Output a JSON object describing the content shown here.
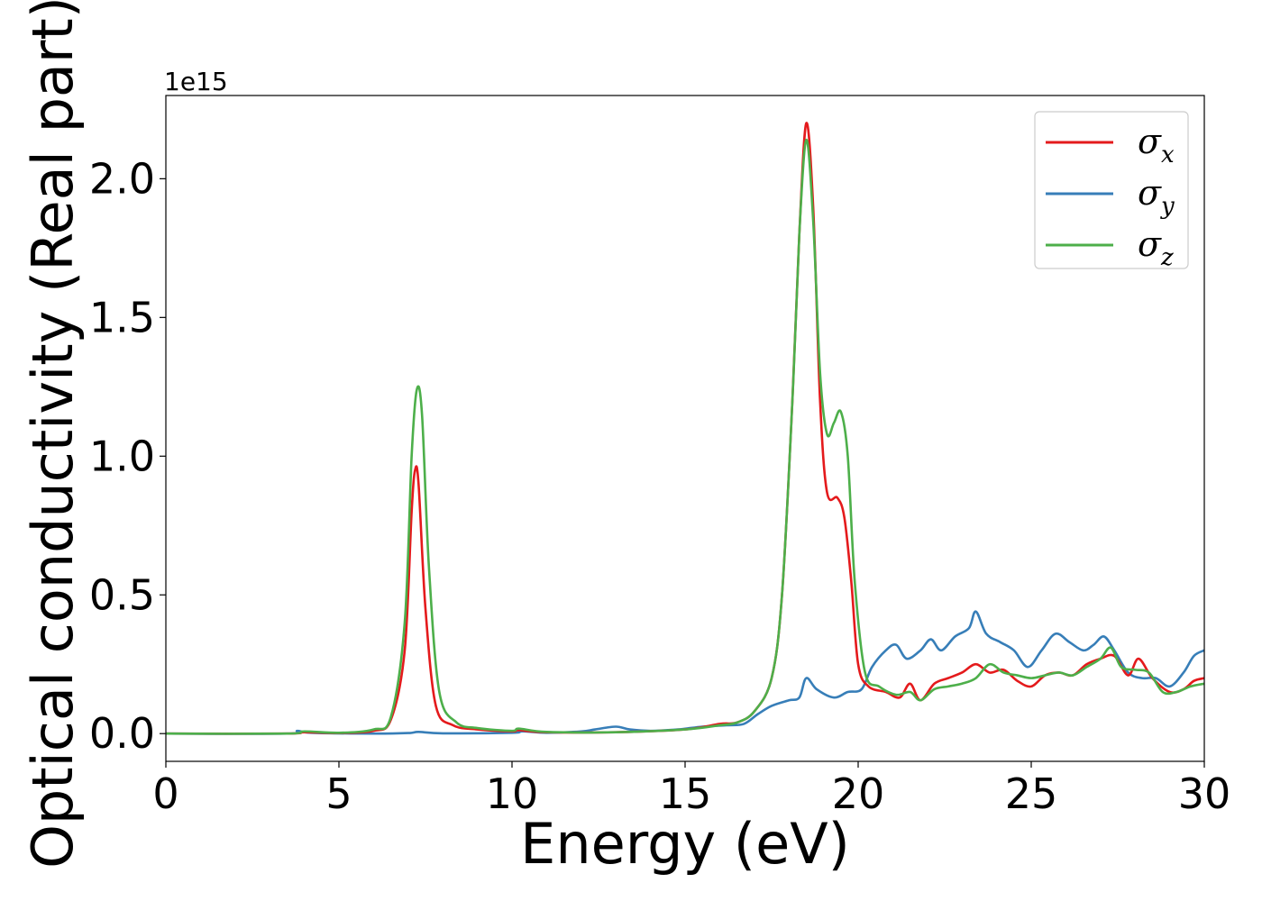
{
  "chart_data": {
    "type": "line",
    "xlabel": "Energy (eV)",
    "ylabel": "Optical conductivity (Real part)",
    "y_offset_label": "1e15",
    "xlim": [
      0,
      30
    ],
    "ylim": [
      -0.1,
      2.3
    ],
    "xticks": [
      0,
      5,
      10,
      15,
      20,
      25,
      30
    ],
    "xtick_labels": [
      "0",
      "5",
      "10",
      "15",
      "20",
      "25",
      "30"
    ],
    "yticks": [
      0.0,
      0.5,
      1.0,
      1.5,
      2.0
    ],
    "ytick_labels": [
      "0.0",
      "0.5",
      "1.0",
      "1.5",
      "2.0"
    ],
    "grid": false,
    "legend_position": "top-right",
    "series": [
      {
        "name": "σx",
        "name_main": "σ",
        "name_sub": "x",
        "color": "#e41a1c",
        "points": [
          [
            0,
            0
          ],
          [
            3.5,
            0
          ],
          [
            4.0,
            0.005
          ],
          [
            5.0,
            0.002
          ],
          [
            6.0,
            0.01
          ],
          [
            6.5,
            0.05
          ],
          [
            6.9,
            0.3
          ],
          [
            7.1,
            0.8
          ],
          [
            7.2,
            0.95
          ],
          [
            7.3,
            0.9
          ],
          [
            7.5,
            0.45
          ],
          [
            7.8,
            0.1
          ],
          [
            8.3,
            0.03
          ],
          [
            9,
            0.015
          ],
          [
            10,
            0.008
          ],
          [
            10.2,
            0.012
          ],
          [
            11,
            0.005
          ],
          [
            13,
            0.005
          ],
          [
            15,
            0.015
          ],
          [
            16,
            0.035
          ],
          [
            16.5,
            0.04
          ],
          [
            17,
            0.08
          ],
          [
            17.5,
            0.2
          ],
          [
            17.8,
            0.5
          ],
          [
            18.1,
            1.2
          ],
          [
            18.3,
            1.8
          ],
          [
            18.5,
            2.2
          ],
          [
            18.7,
            1.9
          ],
          [
            18.9,
            1.2
          ],
          [
            19.1,
            0.87
          ],
          [
            19.4,
            0.85
          ],
          [
            19.6,
            0.78
          ],
          [
            19.8,
            0.55
          ],
          [
            20.0,
            0.25
          ],
          [
            20.3,
            0.17
          ],
          [
            20.8,
            0.15
          ],
          [
            21.2,
            0.13
          ],
          [
            21.5,
            0.18
          ],
          [
            21.8,
            0.12
          ],
          [
            22.2,
            0.18
          ],
          [
            22.6,
            0.2
          ],
          [
            23.0,
            0.22
          ],
          [
            23.4,
            0.25
          ],
          [
            23.8,
            0.22
          ],
          [
            24.2,
            0.23
          ],
          [
            24.6,
            0.19
          ],
          [
            25.0,
            0.17
          ],
          [
            25.4,
            0.21
          ],
          [
            25.8,
            0.22
          ],
          [
            26.2,
            0.21
          ],
          [
            26.6,
            0.25
          ],
          [
            27.0,
            0.27
          ],
          [
            27.4,
            0.28
          ],
          [
            27.8,
            0.21
          ],
          [
            28.1,
            0.27
          ],
          [
            28.5,
            0.2
          ],
          [
            29.0,
            0.15
          ],
          [
            29.4,
            0.16
          ],
          [
            29.7,
            0.19
          ],
          [
            30,
            0.2
          ]
        ]
      },
      {
        "name": "σy",
        "name_main": "σ",
        "name_sub": "y",
        "color": "#377eb8",
        "points": [
          [
            0,
            0
          ],
          [
            3.5,
            0
          ],
          [
            3.8,
            0.01
          ],
          [
            4.2,
            0.003
          ],
          [
            6.0,
            0
          ],
          [
            7.0,
            0.002
          ],
          [
            7.3,
            0.006
          ],
          [
            8,
            0.001
          ],
          [
            10,
            0.003
          ],
          [
            10.3,
            0.008
          ],
          [
            11,
            0.003
          ],
          [
            12,
            0.008
          ],
          [
            12.4,
            0.015
          ],
          [
            13.0,
            0.025
          ],
          [
            13.4,
            0.015
          ],
          [
            14,
            0.01
          ],
          [
            14.8,
            0.015
          ],
          [
            15.5,
            0.025
          ],
          [
            16.2,
            0.03
          ],
          [
            16.7,
            0.035
          ],
          [
            17.1,
            0.07
          ],
          [
            17.5,
            0.1
          ],
          [
            18.0,
            0.12
          ],
          [
            18.3,
            0.13
          ],
          [
            18.5,
            0.2
          ],
          [
            18.8,
            0.16
          ],
          [
            19.3,
            0.13
          ],
          [
            19.7,
            0.15
          ],
          [
            20.1,
            0.16
          ],
          [
            20.4,
            0.24
          ],
          [
            20.8,
            0.3
          ],
          [
            21.1,
            0.32
          ],
          [
            21.4,
            0.27
          ],
          [
            21.8,
            0.3
          ],
          [
            22.1,
            0.34
          ],
          [
            22.4,
            0.3
          ],
          [
            22.8,
            0.35
          ],
          [
            23.2,
            0.38
          ],
          [
            23.4,
            0.44
          ],
          [
            23.7,
            0.36
          ],
          [
            24.1,
            0.33
          ],
          [
            24.5,
            0.3
          ],
          [
            24.9,
            0.24
          ],
          [
            25.3,
            0.3
          ],
          [
            25.7,
            0.36
          ],
          [
            26.1,
            0.33
          ],
          [
            26.5,
            0.3
          ],
          [
            26.8,
            0.32
          ],
          [
            27.1,
            0.35
          ],
          [
            27.4,
            0.3
          ],
          [
            27.8,
            0.22
          ],
          [
            28.2,
            0.2
          ],
          [
            28.6,
            0.2
          ],
          [
            29.0,
            0.17
          ],
          [
            29.4,
            0.22
          ],
          [
            29.7,
            0.28
          ],
          [
            30,
            0.3
          ]
        ]
      },
      {
        "name": "σz",
        "name_main": "σ",
        "name_sub": "z",
        "color": "#4daf4a",
        "points": [
          [
            0,
            0
          ],
          [
            3.5,
            0
          ],
          [
            4.0,
            0.008
          ],
          [
            5.0,
            0.003
          ],
          [
            6.0,
            0.015
          ],
          [
            6.5,
            0.06
          ],
          [
            6.9,
            0.4
          ],
          [
            7.1,
            1.0
          ],
          [
            7.25,
            1.24
          ],
          [
            7.4,
            1.15
          ],
          [
            7.6,
            0.6
          ],
          [
            7.9,
            0.15
          ],
          [
            8.4,
            0.04
          ],
          [
            9,
            0.02
          ],
          [
            10,
            0.01
          ],
          [
            10.2,
            0.018
          ],
          [
            11,
            0.006
          ],
          [
            13,
            0.005
          ],
          [
            15,
            0.015
          ],
          [
            16,
            0.03
          ],
          [
            16.5,
            0.04
          ],
          [
            17,
            0.08
          ],
          [
            17.5,
            0.2
          ],
          [
            17.8,
            0.5
          ],
          [
            18.1,
            1.2
          ],
          [
            18.3,
            1.8
          ],
          [
            18.5,
            2.14
          ],
          [
            18.7,
            1.85
          ],
          [
            18.9,
            1.3
          ],
          [
            19.1,
            1.08
          ],
          [
            19.3,
            1.12
          ],
          [
            19.5,
            1.16
          ],
          [
            19.7,
            1.0
          ],
          [
            19.9,
            0.55
          ],
          [
            20.2,
            0.22
          ],
          [
            20.6,
            0.17
          ],
          [
            21.1,
            0.14
          ],
          [
            21.5,
            0.15
          ],
          [
            21.8,
            0.12
          ],
          [
            22.2,
            0.16
          ],
          [
            22.6,
            0.17
          ],
          [
            23.0,
            0.18
          ],
          [
            23.4,
            0.2
          ],
          [
            23.8,
            0.25
          ],
          [
            24.2,
            0.22
          ],
          [
            24.6,
            0.21
          ],
          [
            25.0,
            0.2
          ],
          [
            25.4,
            0.21
          ],
          [
            25.8,
            0.22
          ],
          [
            26.2,
            0.21
          ],
          [
            26.6,
            0.24
          ],
          [
            27.0,
            0.27
          ],
          [
            27.3,
            0.31
          ],
          [
            27.6,
            0.24
          ],
          [
            28.0,
            0.23
          ],
          [
            28.4,
            0.22
          ],
          [
            28.8,
            0.15
          ],
          [
            29.2,
            0.15
          ],
          [
            29.6,
            0.17
          ],
          [
            30,
            0.18
          ]
        ]
      }
    ]
  }
}
